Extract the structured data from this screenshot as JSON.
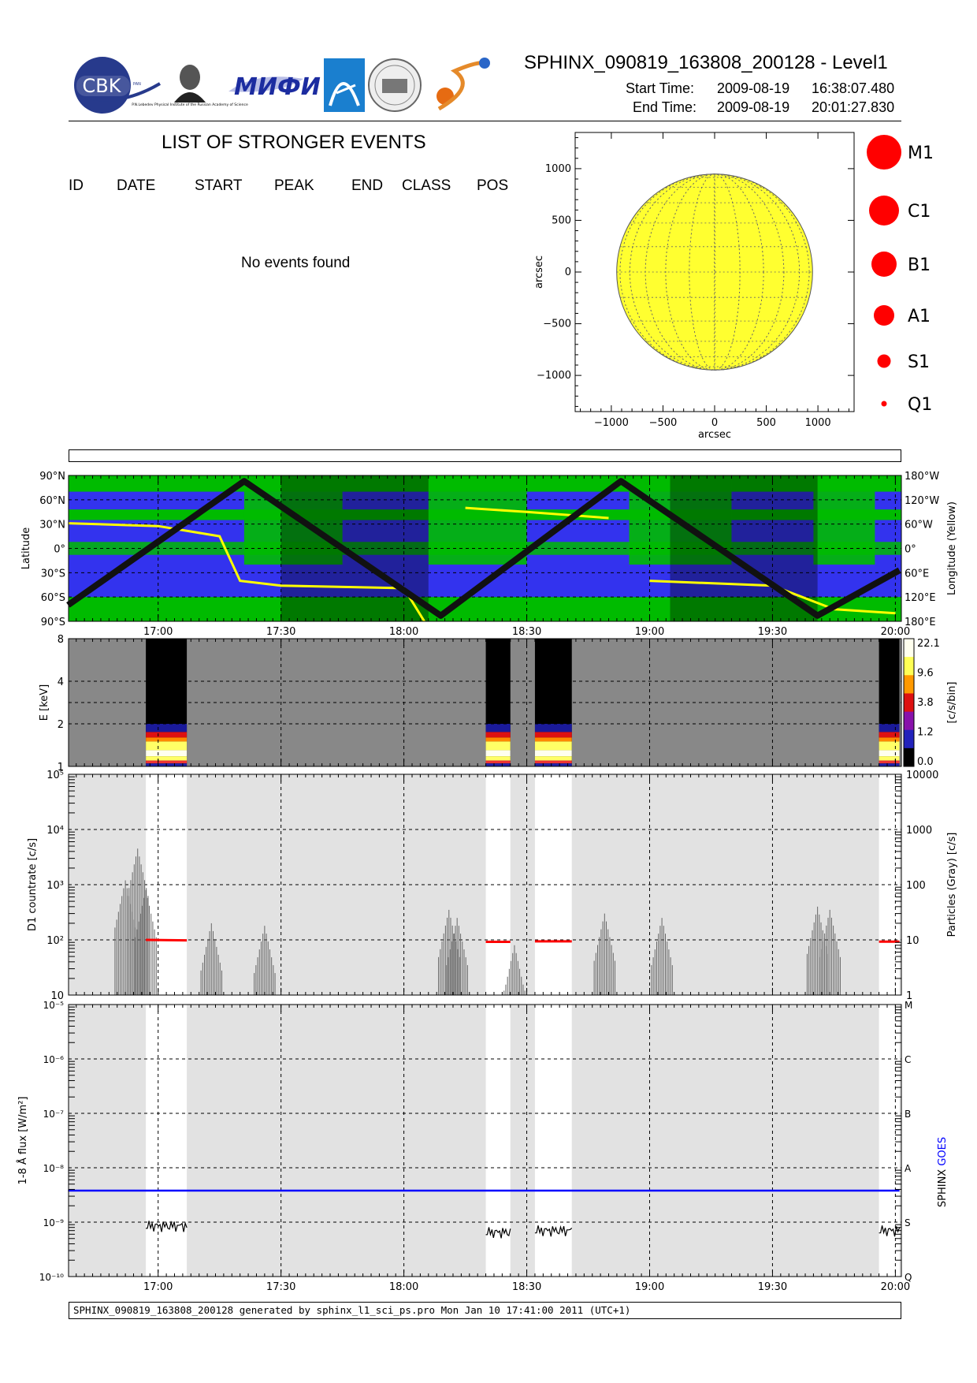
{
  "header": {
    "title": "SPHINX_090819_163808_200128 - Level1",
    "start_label": "Start Time:",
    "start_date": "2009-08-19",
    "start_time": "16:38:07.480",
    "end_label": "End Time:",
    "end_date": "2009-08-19",
    "end_time": "20:01:27.830"
  },
  "logos": {
    "cbk": "CBK",
    "cbk_sub": "PAN",
    "lebedev": "P.N.Lebedev Physical Institute of the Russian Academy of Science",
    "mifi": "MИФИ"
  },
  "events": {
    "title": "LIST OF STRONGER EVENTS",
    "columns": [
      "ID",
      "DATE",
      "START",
      "PEAK",
      "END",
      "CLASS",
      "POS"
    ],
    "empty_message": "No events found"
  },
  "colors": {
    "sun": "#ffff30",
    "event_red": "#ff0000",
    "lat_blue": "#3333ee",
    "lat_green": "#00bb00",
    "goes_blue": "#0000ff",
    "track": "#111111",
    "longitude_yellow": "#ffff00",
    "exposure_gray": "#e2e2e2",
    "spectro_gray": "#888888"
  },
  "chart_data": [
    {
      "type": "scatter",
      "title": "",
      "xlabel": "arcsec",
      "ylabel": "arcsec",
      "xlim": [
        -1350,
        1350
      ],
      "ylim": [
        -1350,
        1350
      ],
      "xticks": [
        "−1000",
        "−500",
        "0",
        "500",
        "1000"
      ],
      "yticks": [
        "1000",
        "500",
        "0",
        "−500",
        "−1000"
      ],
      "solar_radius_arcsec": 948,
      "legend": [
        {
          "label": "M1",
          "size_class": 6
        },
        {
          "label": "C1",
          "size_class": 5
        },
        {
          "label": "B1",
          "size_class": 4
        },
        {
          "label": "A1",
          "size_class": 3
        },
        {
          "label": "S1",
          "size_class": 2
        },
        {
          "label": "Q1",
          "size_class": 1
        }
      ],
      "points": []
    },
    {
      "type": "line",
      "title": "",
      "ylabel": "Latitude",
      "ylabel_right": "Longitude (Yellow)",
      "yticks": [
        "90°N",
        "60°N",
        "30°N",
        "0°",
        "30°S",
        "60°S",
        "90°S"
      ],
      "yticks_right": [
        "180°W",
        "120°W",
        "60°W",
        "0°",
        "60°E",
        "120°E",
        "180°E"
      ],
      "xlim": [
        "16:38:07",
        "20:01:28"
      ],
      "xticks": [
        "17:00",
        "17:30",
        "18:00",
        "18:30",
        "19:00",
        "19:30",
        "20:00"
      ],
      "latitude_track": {
        "x": [
          "16:38",
          "17:21",
          "18:09",
          "18:53",
          "19:41",
          "20:01"
        ],
        "y": [
          -70,
          83,
          -83,
          83,
          -83,
          -27
        ]
      },
      "longitude_track_deg": {
        "x": [
          "16:38",
          "17:00",
          "17:15",
          "17:20",
          "17:30",
          "18:00",
          "18:05",
          "18:15",
          "18:30",
          "18:50",
          "19:00",
          "19:30",
          "19:45",
          "20:00"
        ],
        "y": [
          62,
          55,
          30,
          -80,
          -92,
          -98,
          -180,
          100,
          90,
          75,
          -80,
          -92,
          -150,
          -160
        ]
      },
      "shaded_spans": [
        [
          "17:30",
          "18:06"
        ],
        [
          "19:05",
          "19:41"
        ]
      ]
    },
    {
      "type": "heatmap",
      "title": "",
      "ylabel": "E [keV]",
      "ylabel_right": "[c/s/bin]",
      "yticks": [
        "8",
        "4",
        "2",
        "1"
      ],
      "colorbar_ticks": [
        "22.1",
        "9.6",
        "3.8",
        "1.2",
        "0.0"
      ],
      "xticks": [
        "17:00",
        "17:30",
        "18:00",
        "18:30",
        "19:00",
        "19:30",
        "20:00"
      ],
      "observation_intervals": [
        [
          "16:57",
          "17:07"
        ],
        [
          "18:20",
          "18:26"
        ],
        [
          "18:32",
          "18:41"
        ],
        [
          "19:56",
          "20:01"
        ]
      ]
    },
    {
      "type": "line",
      "title": "",
      "ylabel": "D1 countrate [c/s]",
      "ylabel_right": "Particles (Gray) [c/s]",
      "ylog": true,
      "ylim": [
        10,
        100000
      ],
      "yticks": [
        "10",
        "10²",
        "10³",
        "10⁴",
        "10⁵"
      ],
      "yticks_right": [
        "1",
        "10",
        "100",
        "1000",
        "10000"
      ],
      "xticks": [
        "17:00",
        "17:30",
        "18:00",
        "18:30",
        "19:00",
        "19:30",
        "20:00"
      ],
      "series": [
        {
          "color": "red",
          "x": [
            "16:57",
            "17:07",
            "18:20",
            "18:26",
            "18:32",
            "18:41",
            "19:56",
            "20:01"
          ],
          "values": [
            100,
            98,
            92,
            92,
            94,
            94,
            93,
            93
          ]
        }
      ],
      "particles_peaks": {
        "x": [
          "16:52",
          "16:55",
          "16:57",
          "17:13",
          "17:26",
          "18:11",
          "18:13",
          "18:27",
          "18:49",
          "19:03",
          "19:41",
          "19:44"
        ],
        "values": [
          1200,
          4500,
          800,
          200,
          180,
          350,
          250,
          80,
          300,
          250,
          400,
          350
        ]
      }
    },
    {
      "type": "line",
      "title": "",
      "ylabel": "1-8 Å flux [W/m²]",
      "ylabel_right_parts": [
        "SPHINX",
        "GOES"
      ],
      "ylog": true,
      "ylim": [
        1e-10,
        1e-05
      ],
      "yticks": [
        "10⁻¹⁰",
        "10⁻⁹",
        "10⁻⁸",
        "10⁻⁷",
        "10⁻⁶",
        "10⁻⁵"
      ],
      "class_ticks": [
        "Q",
        "S",
        "A",
        "B",
        "C",
        "M"
      ],
      "xticks": [
        "17:00",
        "17:30",
        "18:00",
        "18:30",
        "19:00",
        "19:30",
        "20:00"
      ],
      "series": [
        {
          "name": "GOES",
          "color": "blue",
          "x": [
            "16:38",
            "20:01"
          ],
          "values": [
            3.8e-09,
            3.8e-09
          ]
        },
        {
          "name": "SPHINX",
          "color": "black",
          "x": [
            "16:57",
            "17:07",
            "18:20",
            "18:26",
            "18:32",
            "18:41",
            "19:56",
            "20:01"
          ],
          "values": [
            8.5e-10,
            8.5e-10,
            6.5e-10,
            6.5e-10,
            7e-10,
            7e-10,
            7e-10,
            7e-10
          ]
        }
      ]
    }
  ],
  "footer": "SPHINX_090819_163808_200128 generated by sphinx_l1_sci_ps.pro Mon Jan 10 17:41:00 2011 (UTC+1)"
}
